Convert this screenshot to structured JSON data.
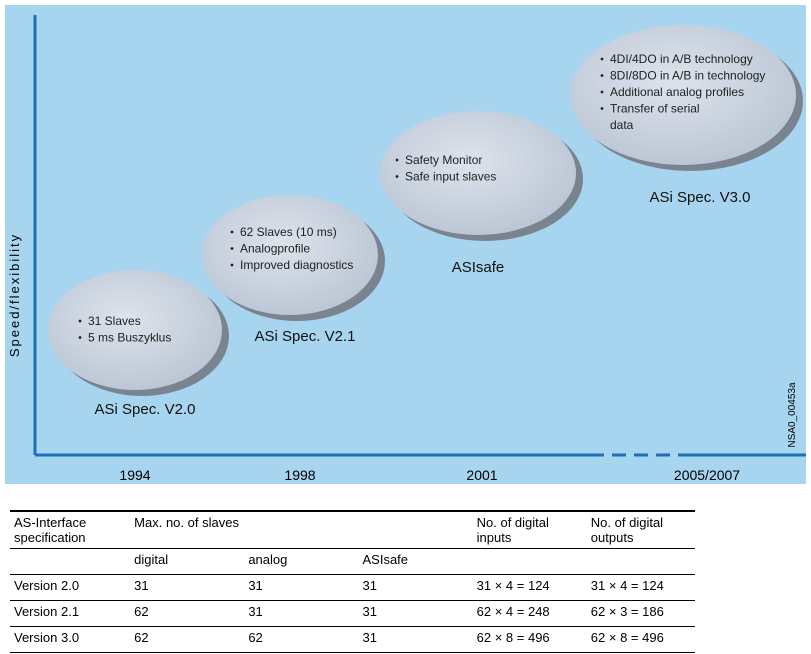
{
  "diagram": {
    "y_axis_label": "Speed/flexibility",
    "code": "NSA0_00453a",
    "years": [
      "1994",
      "1998",
      "2001",
      "2005/2007"
    ],
    "stages": [
      {
        "label": "ASi Spec. V2.0",
        "bullets": [
          "31 Slaves",
          "5 ms Buszyklus"
        ]
      },
      {
        "label": "ASi Spec. V2.1",
        "bullets": [
          "62 Slaves (10 ms)",
          "Analogprofile",
          "Improved diagnostics"
        ]
      },
      {
        "label": "ASIsafe",
        "bullets": [
          "Safety Monitor",
          "Safe input slaves"
        ]
      },
      {
        "label": "ASi Spec. V3.0",
        "bullets": [
          "4DI/4DO in A/B technology",
          "8DI/8DO in A/B in technology",
          "Additional analog profiles",
          "Transfer of serial",
          "data"
        ]
      }
    ]
  },
  "table": {
    "header": [
      "AS-Interface specification",
      "Max. no. of slaves",
      "No. of digital inputs",
      "No. of digital outputs"
    ],
    "subheader": [
      "digital",
      "analog",
      "ASIsafe"
    ],
    "rows": [
      [
        "Version 2.0",
        "31",
        "31",
        "31",
        "31 × 4 = 124",
        "31 × 4 = 124"
      ],
      [
        "Version 2.1",
        "62",
        "31",
        "31",
        "62 × 4 = 248",
        "62 × 3 = 186"
      ],
      [
        "Version 3.0",
        "62",
        "62",
        "31",
        "62 × 8 = 496",
        "62 × 8 = 496"
      ]
    ]
  }
}
